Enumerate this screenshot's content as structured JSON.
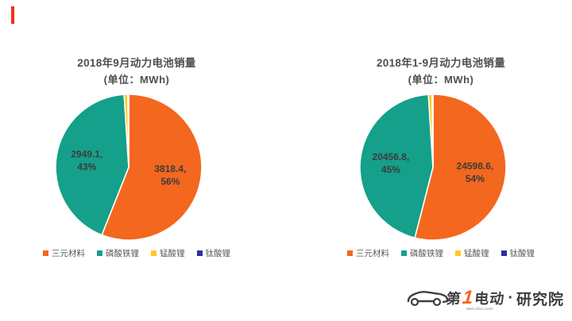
{
  "accent_color": "#E8351A",
  "chart_data": [
    {
      "type": "pie",
      "title": "2018年9月动力电池销量",
      "subtitle": "(单位：MWh)",
      "unit": "MWh",
      "legend_position": "bottom",
      "slices": [
        {
          "name": "三元材料",
          "value": "3818.4",
          "percent": 56,
          "color": "#F4671F"
        },
        {
          "name": "磷酸铁锂",
          "value": "2949.1",
          "percent": 43,
          "color": "#14A08B"
        },
        {
          "name": "锰酸锂",
          "value": null,
          "percent": 0.8,
          "color": "#FFC91F"
        },
        {
          "name": "钛酸锂",
          "value": null,
          "percent": 0.2,
          "color": "#2F2F9D"
        }
      ]
    },
    {
      "type": "pie",
      "title": "2018年1-9月动力电池销量",
      "subtitle": "(单位：MWh)",
      "unit": "MWh",
      "legend_position": "bottom",
      "slices": [
        {
          "name": "三元材料",
          "value": "24598.6",
          "percent": 54,
          "color": "#F4671F"
        },
        {
          "name": "磷酸铁锂",
          "value": "20456.8",
          "percent": 45,
          "color": "#14A08B"
        },
        {
          "name": "锰酸锂",
          "value": null,
          "percent": 0.8,
          "color": "#FFC91F"
        },
        {
          "name": "钛酸锂",
          "value": null,
          "percent": 0.2,
          "color": "#2F2F9D"
        }
      ]
    }
  ],
  "logo": {
    "char1": "第",
    "digit": "1",
    "chars2": "电动",
    "url": "www.d1ev.com",
    "dot": "·",
    "org": "研究院"
  }
}
